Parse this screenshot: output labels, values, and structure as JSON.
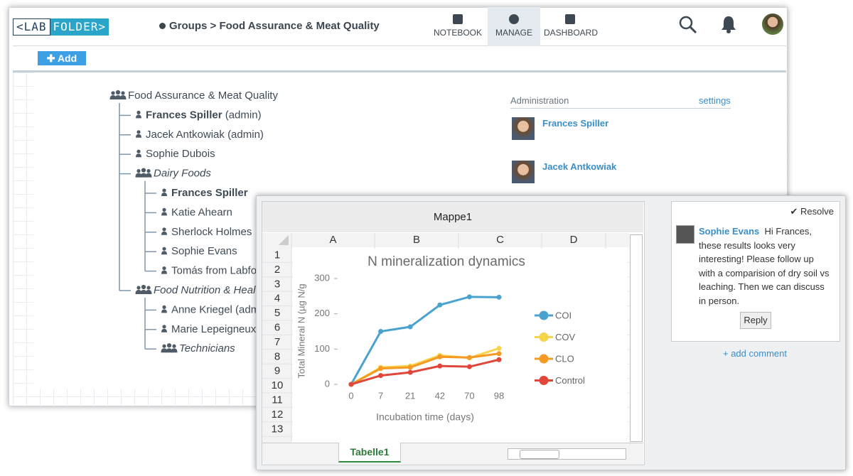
{
  "app": {
    "logo": [
      "<LAB",
      "FOLDER>"
    ],
    "breadcrumb": [
      "Groups",
      "Food Assurance & Meat Quality"
    ],
    "breadcrumb_separator": ">",
    "nav": [
      "NOTEBOOK",
      "MANAGE",
      "DASHBOARD"
    ],
    "active_nav": "MANAGE",
    "add_button": "Add"
  },
  "tree": {
    "label": "Food Assurance & Meat Quality",
    "kind": "group",
    "children": [
      {
        "label": "Frances Spiller",
        "note": "(admin)",
        "kind": "member",
        "emphasis": true
      },
      {
        "label": "Jacek Antkowiak",
        "note": "(admin)",
        "kind": "member"
      },
      {
        "label": "Sophie Dubois",
        "kind": "member"
      },
      {
        "label": "Dairy Foods",
        "kind": "group",
        "children": [
          {
            "label": "Frances Spiller",
            "kind": "member",
            "emphasis": true
          },
          {
            "label": "Katie Ahearn",
            "kind": "member"
          },
          {
            "label": "Sherlock Holmes",
            "kind": "member"
          },
          {
            "label": "Sophie Evans",
            "kind": "member"
          },
          {
            "label": "Tomás from Labfolder",
            "kind": "member"
          }
        ]
      },
      {
        "label": "Food Nutrition & Health",
        "kind": "group",
        "children": [
          {
            "label": "Anne Kriegel (admin)",
            "kind": "member"
          },
          {
            "label": "Marie Lepeigneux",
            "kind": "member"
          },
          {
            "label": "Technicians",
            "kind": "group",
            "children": []
          }
        ]
      }
    ]
  },
  "administration": {
    "title": "Administration",
    "settings": "settings",
    "admins": [
      "Frances Spiller",
      "Jacek Antkowiak"
    ]
  },
  "spreadsheet": {
    "title": "Mappe1",
    "columns": [
      "A",
      "B",
      "C",
      "D"
    ],
    "rows": [
      1,
      2,
      3,
      4,
      5,
      6,
      7,
      8,
      9,
      10,
      11,
      12,
      13
    ],
    "sheet_tab": "Tabelle1"
  },
  "chart_data": {
    "type": "line",
    "title": "N mineralization dynamics",
    "y_label": "Total Mineral N (µg N/g",
    "x_label": "Incubation time (days)",
    "categories": [
      "0",
      "7",
      "21",
      "42",
      "70",
      "98"
    ],
    "series": [
      {
        "name": "COI",
        "color": "#4aa3cf",
        "values": [
          0,
          150,
          163,
          225,
          248,
          247
        ]
      },
      {
        "name": "COV",
        "color": "#f7d44c",
        "values": [
          0,
          48,
          52,
          82,
          75,
          102
        ]
      },
      {
        "name": "CLO",
        "color": "#f59a24",
        "values": [
          0,
          45,
          48,
          78,
          76,
          87
        ]
      },
      {
        "name": "Control",
        "color": "#e0463a",
        "values": [
          0,
          25,
          34,
          52,
          50,
          70
        ]
      }
    ],
    "ylim": [
      0,
      300
    ],
    "yticks": [
      0,
      100,
      200,
      300
    ]
  },
  "comment": {
    "resolve": "Resolve",
    "author": "Sophie Evans",
    "text": "Hi Frances, these results looks very interesting! Please follow up with a comparision of dry soil vs leaching. Then we can discuss in person.",
    "reply": "Reply",
    "add_comment": "+ add comment"
  }
}
